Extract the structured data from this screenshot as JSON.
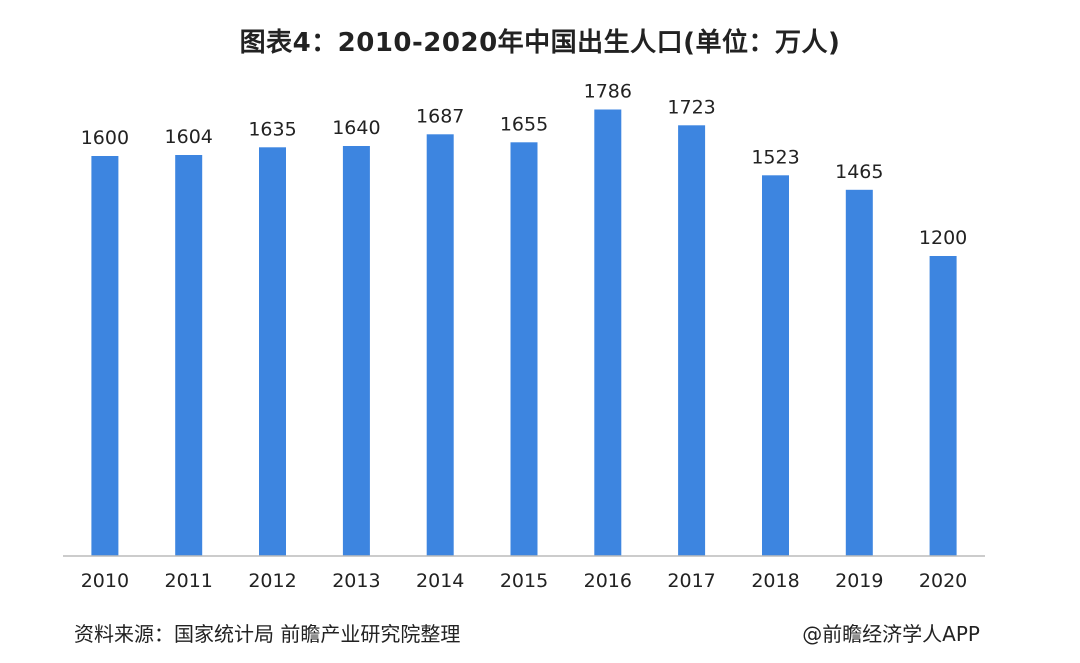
{
  "chart_data": {
    "type": "bar",
    "title": "图表4：2010-2020年中国出生人口(单位：万人)",
    "categories": [
      "2010",
      "2011",
      "2012",
      "2013",
      "2014",
      "2015",
      "2016",
      "2017",
      "2018",
      "2019",
      "2020"
    ],
    "values": [
      1600,
      1604,
      1635,
      1640,
      1687,
      1655,
      1786,
      1723,
      1523,
      1465,
      1200
    ],
    "unit": "万人",
    "ylim": [
      0,
      1800
    ],
    "grid": false,
    "xlabel": "",
    "ylabel": "",
    "bar_color": "#3d85e0",
    "axis_color": "#bbbbbb"
  },
  "footer": {
    "source": "资料来源：国家统计局 前瞻产业研究院整理",
    "credit": "@前瞻经济学人APP"
  }
}
